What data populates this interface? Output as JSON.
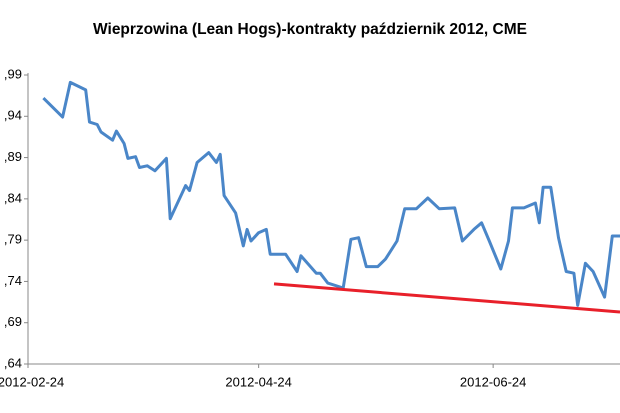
{
  "chart_data": {
    "type": "line",
    "title": "Wieprzowina (Lean Hogs)-kontrakty październik 2012, CME",
    "x": [
      "2012-02-28",
      "2012-03-04",
      "2012-03-06",
      "2012-03-10",
      "2012-03-11",
      "2012-03-13",
      "2012-03-14",
      "2012-03-17",
      "2012-03-18",
      "2012-03-20",
      "2012-03-21",
      "2012-03-23",
      "2012-03-24",
      "2012-03-26",
      "2012-03-28",
      "2012-03-31",
      "2012-04-01",
      "2012-04-05",
      "2012-04-06",
      "2012-04-08",
      "2012-04-11",
      "2012-04-13",
      "2012-04-14",
      "2012-04-15",
      "2012-04-18",
      "2012-04-20",
      "2012-04-21",
      "2012-04-22",
      "2012-04-24",
      "2012-04-26",
      "2012-04-27",
      "2012-05-01",
      "2012-05-04",
      "2012-05-05",
      "2012-05-09",
      "2012-05-10",
      "2012-05-12",
      "2012-05-16",
      "2012-05-17",
      "2012-05-18",
      "2012-05-20",
      "2012-05-22",
      "2012-05-25",
      "2012-05-27",
      "2012-05-30",
      "2012-06-01",
      "2012-06-04",
      "2012-06-07",
      "2012-06-10",
      "2012-06-14",
      "2012-06-16",
      "2012-06-19",
      "2012-06-21",
      "2012-06-23",
      "2012-06-26",
      "2012-06-28",
      "2012-06-29",
      "2012-07-02",
      "2012-07-05",
      "2012-07-06",
      "2012-07-07",
      "2012-07-09",
      "2012-07-11",
      "2012-07-13",
      "2012-07-15",
      "2012-07-16",
      "2012-07-18",
      "2012-07-20",
      "2012-07-23",
      "2012-07-25",
      "2012-07-27"
    ],
    "series": [
      {
        "color": "#4a86c8",
        "values": [
          0.962,
          0.939,
          0.981,
          0.972,
          0.933,
          0.93,
          0.921,
          0.911,
          0.922,
          0.907,
          0.889,
          0.891,
          0.878,
          0.88,
          0.874,
          0.889,
          0.816,
          0.856,
          0.85,
          0.884,
          0.896,
          0.884,
          0.894,
          0.844,
          0.823,
          0.783,
          0.803,
          0.789,
          0.799,
          0.803,
          0.773,
          0.773,
          0.752,
          0.771,
          0.75,
          0.75,
          0.738,
          0.732,
          0.762,
          0.791,
          0.793,
          0.758,
          0.758,
          0.767,
          0.789,
          0.828,
          0.828,
          0.841,
          0.828,
          0.829,
          0.789,
          0.803,
          0.811,
          0.789,
          0.755,
          0.789,
          0.829,
          0.829,
          0.835,
          0.811,
          0.854,
          0.854,
          0.793,
          0.752,
          0.75,
          0.711,
          0.762,
          0.752,
          0.721,
          0.795,
          0.795
        ]
      }
    ],
    "trendline": {
      "color": "#e8202a",
      "x": [
        "2012-04-28",
        "2012-07-27"
      ],
      "values": [
        0.737,
        0.703
      ]
    },
    "xlim": [
      "2012-02-24",
      "2012-07-27"
    ],
    "xticks": [
      "2012-02-24",
      "2012-04-24",
      "2012-06-24"
    ],
    "ylim": [
      0.64,
      0.99
    ],
    "yticks": [
      {
        "value": 0.64,
        "label": ",64"
      },
      {
        "value": 0.69,
        "label": ",69"
      },
      {
        "value": 0.74,
        "label": ",74"
      },
      {
        "value": 0.79,
        "label": ",79"
      },
      {
        "value": 0.84,
        "label": ",84"
      },
      {
        "value": 0.89,
        "label": ",89"
      },
      {
        "value": 0.94,
        "label": ",94"
      },
      {
        "value": 0.99,
        "label": ",99"
      }
    ]
  }
}
